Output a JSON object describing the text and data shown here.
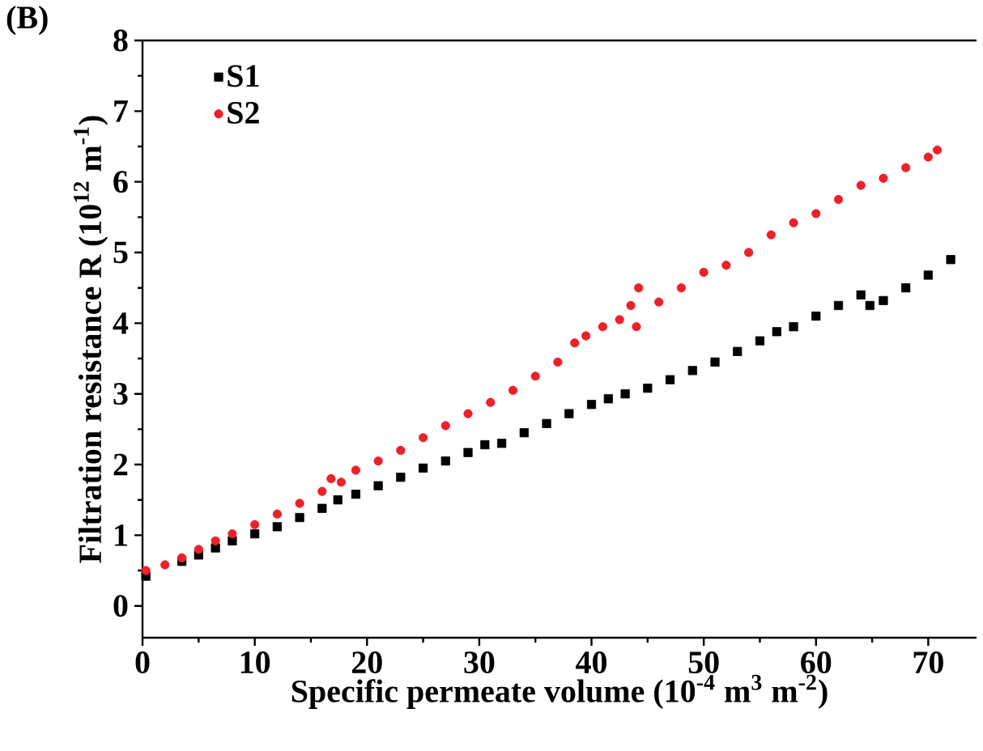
{
  "chart_data": {
    "type": "scatter",
    "xlabel": "Specific permeate volume (10$^{-4}$ m$^{3}$ m$^{-2}$)",
    "ylabel": "Filtration resistance R (10$^{12}$ m$^{-1}$)",
    "annotations": [
      "(B)"
    ],
    "xlim": [
      0,
      74.3
    ],
    "ylim": [
      -0.45,
      8
    ],
    "xticks": [
      0,
      10,
      20,
      30,
      40,
      50,
      60,
      70
    ],
    "yticks": [
      0,
      1,
      2,
      3,
      4,
      5,
      6,
      7,
      8
    ],
    "legend": "top left",
    "grid": false,
    "series": [
      {
        "name": "S1",
        "color": "#000000",
        "marker": "square",
        "x": [
          0.3,
          2,
          3.5,
          5,
          6.5,
          8,
          10,
          12,
          14,
          16,
          17.4,
          19,
          21,
          23,
          25,
          27,
          29,
          30.5,
          32,
          34,
          36,
          38,
          40,
          41.5,
          43,
          45,
          47,
          49,
          51,
          53,
          55,
          56.5,
          58,
          60,
          62,
          64,
          64.8,
          66,
          68,
          70,
          72
        ],
        "values": [
          0.42,
          null,
          0.63,
          0.72,
          0.82,
          0.92,
          1.02,
          1.12,
          1.25,
          1.38,
          1.5,
          1.58,
          1.7,
          1.82,
          1.95,
          2.05,
          2.17,
          2.28,
          2.3,
          2.45,
          2.58,
          2.72,
          2.85,
          2.93,
          3.0,
          3.08,
          3.2,
          3.33,
          3.45,
          3.6,
          3.75,
          3.88,
          3.95,
          4.1,
          4.25,
          4.4,
          4.25,
          4.32,
          4.5,
          4.68,
          4.9
        ]
      },
      {
        "name": "S2",
        "color": "#ee2028",
        "marker": "circle",
        "x": [
          0.3,
          2,
          3.5,
          5,
          6.5,
          8,
          10,
          12,
          14,
          16,
          16.8,
          17.7,
          19,
          21,
          23,
          25,
          27,
          29,
          31,
          33,
          35,
          37,
          38.5,
          39.5,
          41,
          42.5,
          43.5,
          44.2,
          44,
          46,
          48,
          50,
          52,
          54,
          56,
          58,
          60,
          62,
          64,
          66,
          68,
          70,
          70.8
        ],
        "values": [
          0.5,
          0.58,
          0.68,
          0.8,
          0.92,
          1.02,
          1.15,
          1.3,
          1.45,
          1.62,
          1.8,
          1.75,
          1.92,
          2.05,
          2.2,
          2.38,
          2.55,
          2.72,
          2.88,
          3.05,
          3.25,
          3.45,
          3.72,
          3.82,
          3.95,
          4.05,
          4.25,
          4.5,
          3.95,
          4.3,
          4.5,
          4.72,
          4.82,
          5.0,
          5.25,
          5.42,
          5.55,
          5.75,
          5.95,
          6.05,
          6.2,
          6.35,
          6.45
        ]
      }
    ]
  }
}
